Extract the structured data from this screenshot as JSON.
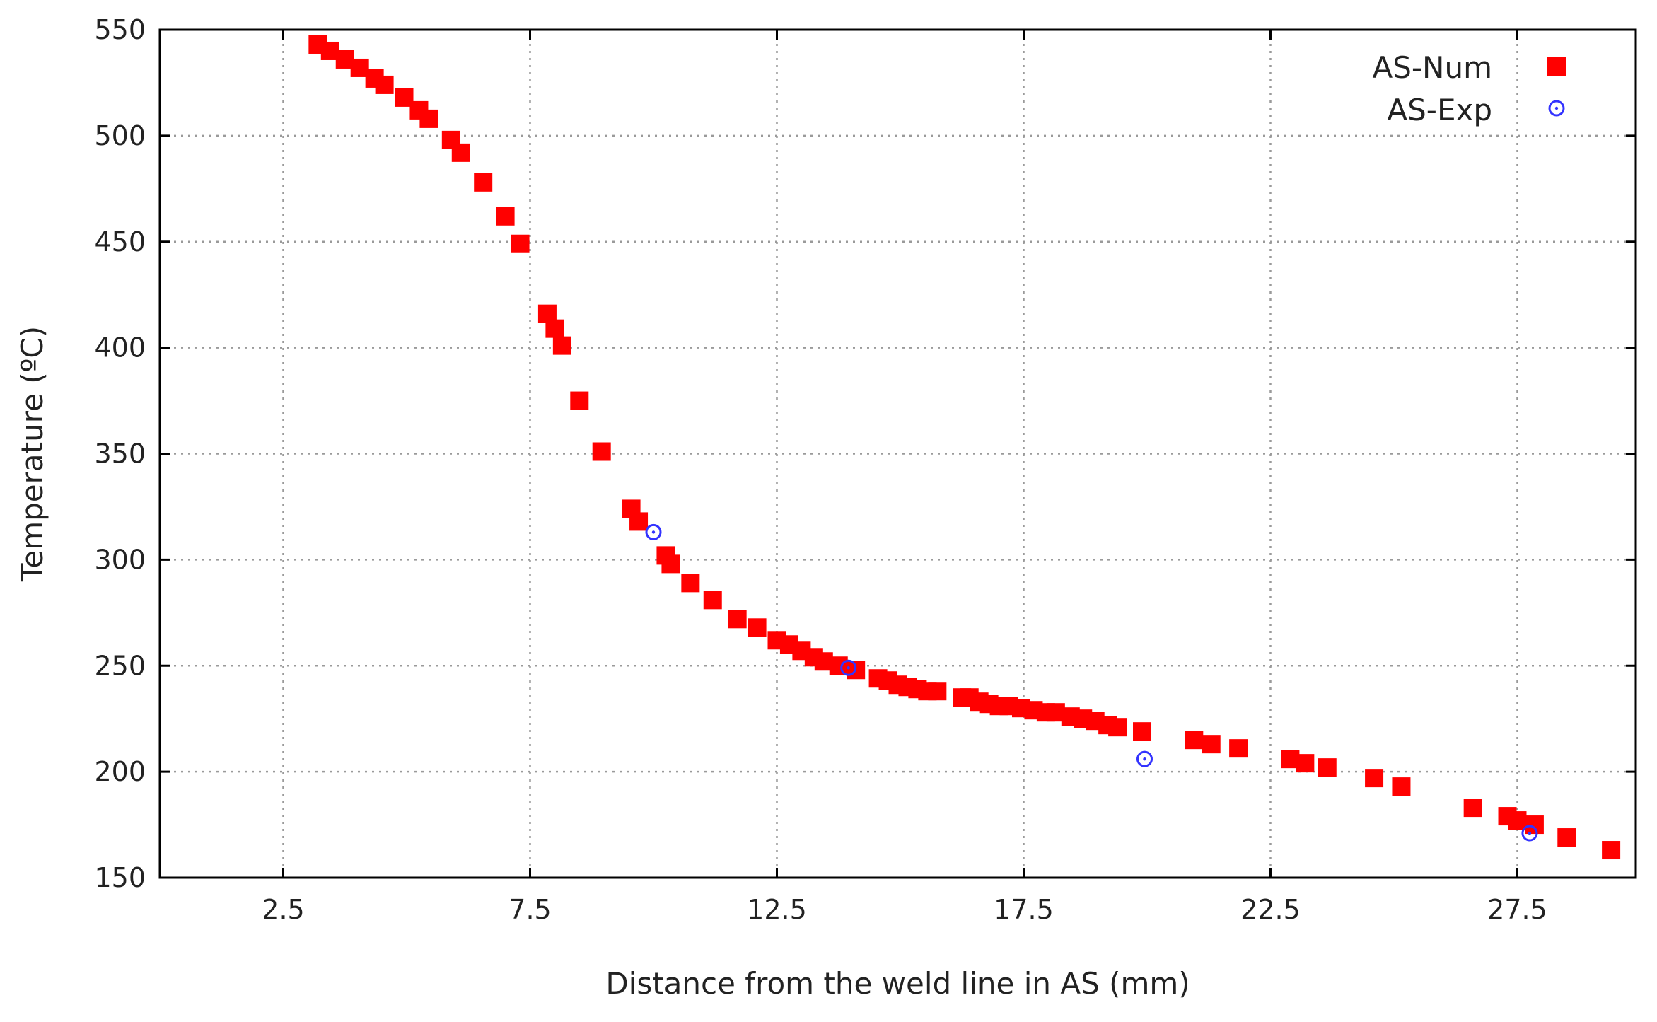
{
  "chart_data": {
    "type": "scatter",
    "title": "",
    "xlabel": "Distance from the weld line in AS (mm)",
    "ylabel": "Temperature (ºC)",
    "xlim": [
      0,
      29.9
    ],
    "ylim": [
      150,
      550
    ],
    "x_ticks": [
      2.5,
      7.5,
      12.5,
      17.5,
      22.5,
      27.5
    ],
    "x_tick_labels": [
      "2.5",
      "7.5",
      "12.5",
      "17.5",
      "22.5",
      "27.5"
    ],
    "y_ticks": [
      150,
      200,
      250,
      300,
      350,
      400,
      450,
      500,
      550
    ],
    "y_tick_labels": [
      "150",
      "200",
      "250",
      "300",
      "350",
      "400",
      "450",
      "500",
      "550"
    ],
    "grid": true,
    "legend_position": "top-right",
    "series": [
      {
        "name": "AS-Num",
        "marker": "filled-square",
        "color": "#ff0000",
        "points": [
          [
            3.2,
            543
          ],
          [
            3.45,
            540
          ],
          [
            3.75,
            536
          ],
          [
            4.05,
            532
          ],
          [
            4.35,
            527
          ],
          [
            4.55,
            524
          ],
          [
            4.95,
            518
          ],
          [
            5.25,
            512
          ],
          [
            5.45,
            508
          ],
          [
            5.9,
            498
          ],
          [
            6.1,
            492
          ],
          [
            6.55,
            478
          ],
          [
            7.0,
            462
          ],
          [
            7.3,
            449
          ],
          [
            7.85,
            416
          ],
          [
            8.0,
            409
          ],
          [
            8.15,
            401
          ],
          [
            8.5,
            375
          ],
          [
            8.95,
            351
          ],
          [
            9.55,
            324
          ],
          [
            9.7,
            318
          ],
          [
            10.25,
            302
          ],
          [
            10.35,
            298
          ],
          [
            10.75,
            289
          ],
          [
            11.2,
            281
          ],
          [
            11.7,
            272
          ],
          [
            12.1,
            268
          ],
          [
            12.5,
            262
          ],
          [
            12.75,
            260
          ],
          [
            13.0,
            257
          ],
          [
            13.25,
            254
          ],
          [
            13.45,
            252
          ],
          [
            13.75,
            250
          ],
          [
            14.1,
            248
          ],
          [
            14.55,
            244
          ],
          [
            14.75,
            243
          ],
          [
            14.95,
            241
          ],
          [
            15.15,
            240
          ],
          [
            15.35,
            239
          ],
          [
            15.55,
            238
          ],
          [
            15.75,
            238
          ],
          [
            16.25,
            235
          ],
          [
            16.4,
            235
          ],
          [
            16.6,
            233
          ],
          [
            16.8,
            232
          ],
          [
            17.0,
            231
          ],
          [
            17.2,
            231
          ],
          [
            17.45,
            230
          ],
          [
            17.7,
            229
          ],
          [
            17.95,
            228
          ],
          [
            18.15,
            228
          ],
          [
            18.45,
            226
          ],
          [
            18.7,
            225
          ],
          [
            18.95,
            224
          ],
          [
            19.2,
            222
          ],
          [
            19.4,
            221
          ],
          [
            19.9,
            219
          ],
          [
            20.95,
            215
          ],
          [
            21.3,
            213
          ],
          [
            21.85,
            211
          ],
          [
            22.9,
            206
          ],
          [
            23.2,
            204
          ],
          [
            23.65,
            202
          ],
          [
            24.6,
            197
          ],
          [
            25.15,
            193
          ],
          [
            26.6,
            183
          ],
          [
            27.3,
            179
          ],
          [
            27.5,
            177
          ],
          [
            27.85,
            175
          ],
          [
            28.5,
            169
          ],
          [
            29.4,
            163
          ]
        ]
      },
      {
        "name": "AS-Exp",
        "marker": "open-circle",
        "color": "#3333ff",
        "points": [
          [
            10.0,
            313
          ],
          [
            13.95,
            249
          ],
          [
            19.95,
            206
          ],
          [
            27.75,
            171
          ]
        ]
      }
    ]
  },
  "legend": {
    "items": [
      {
        "label": "AS-Num",
        "marker": "filled-square",
        "color": "#ff0000"
      },
      {
        "label": "AS-Exp",
        "marker": "open-circle",
        "color": "#3333ff"
      }
    ]
  }
}
